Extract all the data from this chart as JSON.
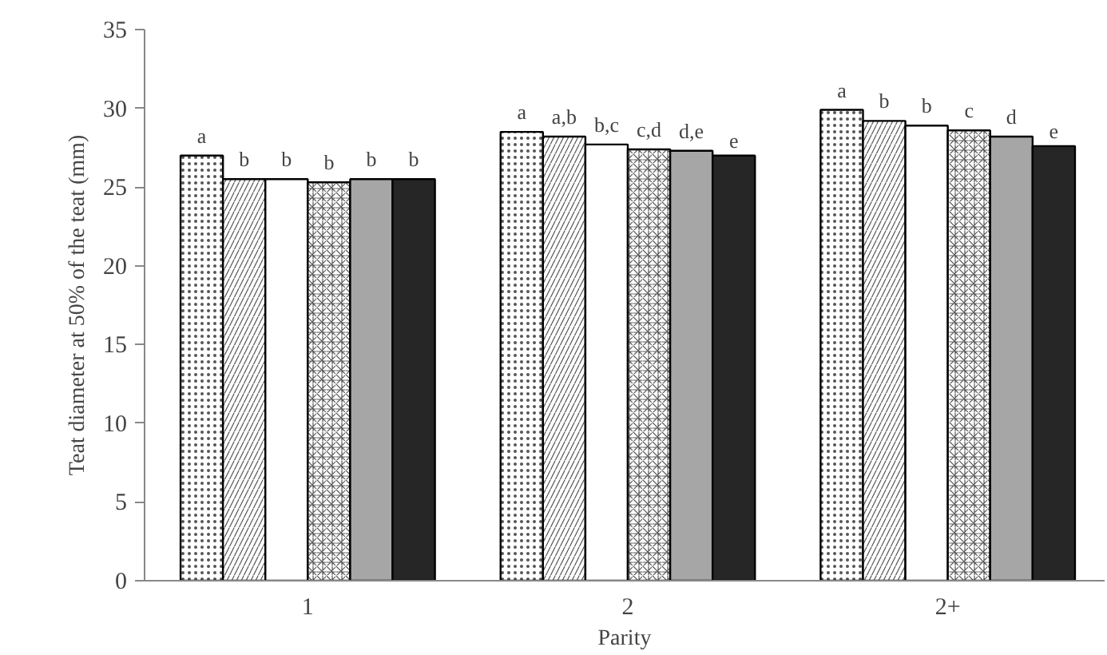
{
  "chart_data": {
    "type": "bar",
    "xlabel": "Parity",
    "ylabel": "Teat diameter at 50% of the teat (mm)",
    "categories": [
      "1",
      "2",
      "2+"
    ],
    "ylim": [
      0,
      35
    ],
    "yticks": [
      0,
      5,
      10,
      15,
      20,
      25,
      30,
      35
    ],
    "grid": false,
    "series": [
      {
        "color": "#ffffff",
        "values": [
          27.0,
          28.5,
          29.9
        ],
        "value_labels": [
          "a",
          "a",
          "a"
        ]
      },
      {
        "color": "#ffffff",
        "values": [
          25.5,
          28.2,
          29.2
        ],
        "value_labels": [
          "b",
          "a,b",
          "b"
        ]
      },
      {
        "color": "#ffffff",
        "values": [
          25.5,
          27.7,
          28.9
        ],
        "value_labels": [
          "b",
          "b,c",
          "b"
        ]
      },
      {
        "color": "#ffffff",
        "values": [
          25.3,
          27.4,
          28.6
        ],
        "value_labels": [
          "b",
          "c,d",
          "c"
        ]
      },
      {
        "color": "#a6a6a6",
        "values": [
          25.5,
          27.3,
          28.2
        ],
        "value_labels": [
          "b",
          "d,e",
          "d"
        ]
      },
      {
        "color": "#262626",
        "values": [
          25.5,
          27.0,
          27.6
        ],
        "value_labels": [
          "b",
          "e",
          "e"
        ]
      }
    ]
  }
}
